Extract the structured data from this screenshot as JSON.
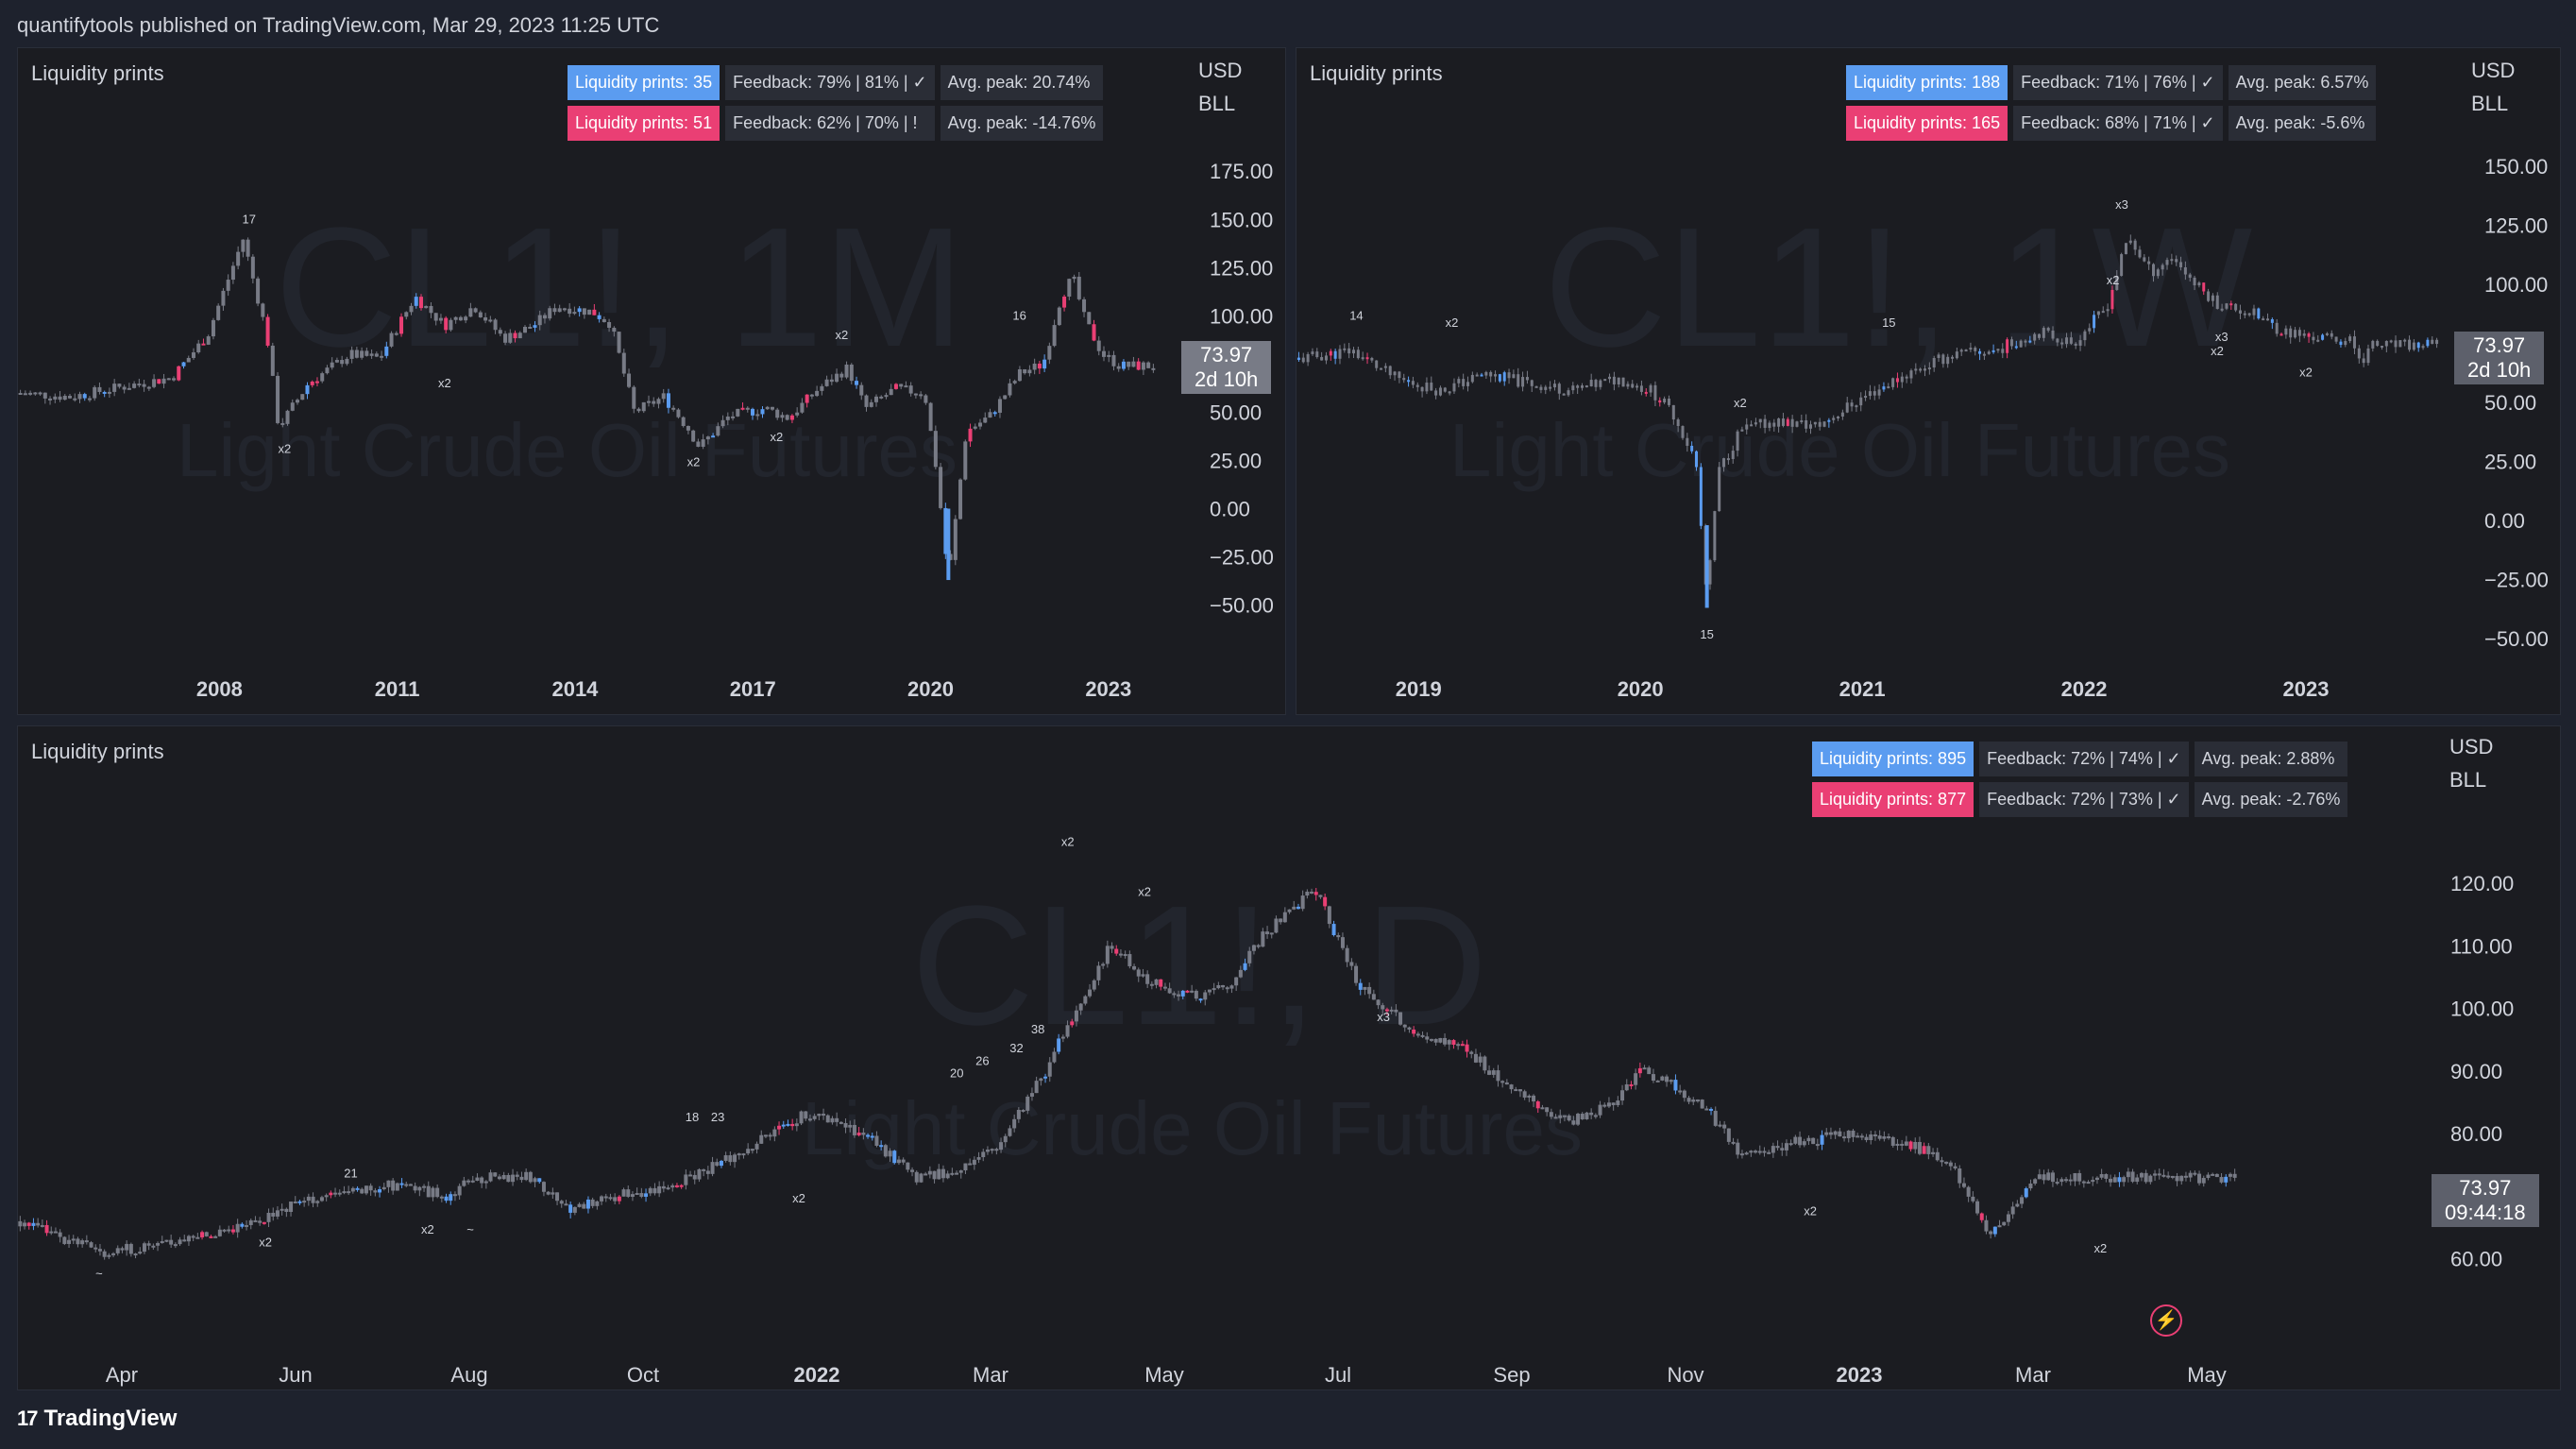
{
  "header": {
    "published_text": "quantifytools published on TradingView.com, Mar 29, 2023 11:25 UTC"
  },
  "footer": {
    "logo_glyph": "17",
    "brand": "TradingView"
  },
  "colors": {
    "bull": "#5b9cf0",
    "bear": "#ea3f74",
    "candle": "#787b86",
    "bg": "#1b1c21"
  },
  "panels": [
    {
      "id": "a",
      "title": "Liquidity prints",
      "watermark_symbol": "CL1!, 1M",
      "watermark_name": "Light Crude Oil Futures",
      "currency": "USD",
      "unit": "BLL",
      "price": "73.97",
      "countdown": "2d 10h",
      "stats": [
        [
          "Liquidity prints: 35",
          "Feedback: 79% | 81% | ✓",
          "Avg. peak: 20.74%"
        ],
        [
          "Liquidity prints: 51",
          "Feedback: 62% | 70% | !",
          "Avg. peak: -14.76%"
        ]
      ],
      "chart_data": {
        "type": "candlestick",
        "x_ticks": [
          "2008",
          "2011",
          "2014",
          "2017",
          "2020",
          "2023"
        ],
        "y_ticks": [
          "175.00",
          "150.00",
          "125.00",
          "100.00",
          "75.00",
          "50.00",
          "25.00",
          "0.00",
          "−25.00",
          "−50.00"
        ],
        "ylim": [
          -60,
          180
        ],
        "xlim": [
          2004.6,
          2023.8
        ],
        "anchors": [
          [
            2004.6,
            60
          ],
          [
            2005.5,
            58
          ],
          [
            2006.5,
            64
          ],
          [
            2007.2,
            68
          ],
          [
            2007.8,
            90
          ],
          [
            2008.4,
            140
          ],
          [
            2008.8,
            90
          ],
          [
            2009.0,
            42
          ],
          [
            2009.5,
            65
          ],
          [
            2010.2,
            80
          ],
          [
            2010.7,
            78
          ],
          [
            2011.3,
            110
          ],
          [
            2011.8,
            95
          ],
          [
            2012.3,
            105
          ],
          [
            2012.8,
            88
          ],
          [
            2013.3,
            95
          ],
          [
            2013.7,
            105
          ],
          [
            2014.3,
            102
          ],
          [
            2014.6,
            96
          ],
          [
            2015.0,
            50
          ],
          [
            2015.5,
            58
          ],
          [
            2015.9,
            42
          ],
          [
            2016.1,
            32
          ],
          [
            2016.6,
            48
          ],
          [
            2017.2,
            52
          ],
          [
            2017.6,
            47
          ],
          [
            2018.1,
            62
          ],
          [
            2018.6,
            73
          ],
          [
            2018.9,
            52
          ],
          [
            2019.4,
            62
          ],
          [
            2019.9,
            60
          ],
          [
            2020.1,
            20
          ],
          [
            2020.3,
            -37
          ],
          [
            2020.6,
            40
          ],
          [
            2021.0,
            48
          ],
          [
            2021.5,
            70
          ],
          [
            2021.9,
            75
          ],
          [
            2022.2,
            110
          ],
          [
            2022.4,
            120
          ],
          [
            2022.6,
            98
          ],
          [
            2022.9,
            80
          ],
          [
            2023.2,
            74
          ]
        ],
        "annotations": [
          {
            "x": 2008.5,
            "y": 148,
            "text": "17"
          },
          {
            "x": 2009.1,
            "y": 29,
            "text": "x2"
          },
          {
            "x": 2011.8,
            "y": 63,
            "text": "x2"
          },
          {
            "x": 2016.0,
            "y": 22,
            "text": "x2"
          },
          {
            "x": 2017.4,
            "y": 35,
            "text": "x2"
          },
          {
            "x": 2018.5,
            "y": 88,
            "text": "x2"
          },
          {
            "x": 2021.5,
            "y": 98,
            "text": "16"
          }
        ]
      }
    },
    {
      "id": "b",
      "title": "Liquidity prints",
      "watermark_symbol": "CL1!, 1W",
      "watermark_name": "Light Crude Oil Futures",
      "currency": "USD",
      "unit": "BLL",
      "price": "73.97",
      "countdown": "2d 10h",
      "stats": [
        [
          "Liquidity prints: 188",
          "Feedback: 71% | 76% | ✓",
          "Avg. peak: 6.57%"
        ],
        [
          "Liquidity prints: 165",
          "Feedback: 68% | 71% | ✓",
          "Avg. peak: -5.6%"
        ]
      ],
      "chart_data": {
        "type": "candlestick",
        "x_ticks": [
          "2019",
          "2020",
          "2021",
          "2022",
          "2023"
        ],
        "y_ticks": [
          "150.00",
          "125.00",
          "100.00",
          "75.00",
          "50.00",
          "25.00",
          "0.00",
          "−25.00",
          "−50.00"
        ],
        "ylim": [
          -60,
          160
        ],
        "xlim": [
          2018.45,
          2023.6
        ],
        "anchors": [
          [
            2018.45,
            68
          ],
          [
            2018.7,
            72
          ],
          [
            2018.9,
            60
          ],
          [
            2019.1,
            55
          ],
          [
            2019.3,
            62
          ],
          [
            2019.5,
            58
          ],
          [
            2019.7,
            55
          ],
          [
            2019.9,
            60
          ],
          [
            2020.05,
            55
          ],
          [
            2020.15,
            45
          ],
          [
            2020.25,
            25
          ],
          [
            2020.3,
            -35
          ],
          [
            2020.35,
            20
          ],
          [
            2020.45,
            38
          ],
          [
            2020.6,
            42
          ],
          [
            2020.8,
            40
          ],
          [
            2021.0,
            52
          ],
          [
            2021.2,
            62
          ],
          [
            2021.4,
            70
          ],
          [
            2021.6,
            72
          ],
          [
            2021.8,
            80
          ],
          [
            2021.95,
            75
          ],
          [
            2022.1,
            90
          ],
          [
            2022.2,
            120
          ],
          [
            2022.3,
            105
          ],
          [
            2022.4,
            112
          ],
          [
            2022.5,
            100
          ],
          [
            2022.6,
            92
          ],
          [
            2022.75,
            88
          ],
          [
            2022.9,
            80
          ],
          [
            2023.0,
            78
          ],
          [
            2023.2,
            76
          ],
          [
            2023.25,
            68
          ],
          [
            2023.3,
            74
          ]
        ],
        "annotations": [
          {
            "x": 2018.72,
            "y": 85,
            "text": "14"
          },
          {
            "x": 2019.15,
            "y": 82,
            "text": "x2"
          },
          {
            "x": 2020.3,
            "y": -50,
            "text": "15"
          },
          {
            "x": 2020.45,
            "y": 48,
            "text": "x2"
          },
          {
            "x": 2021.12,
            "y": 82,
            "text": "15"
          },
          {
            "x": 2022.13,
            "y": 100,
            "text": "x2"
          },
          {
            "x": 2022.17,
            "y": 132,
            "text": "x3"
          },
          {
            "x": 2022.6,
            "y": 70,
            "text": "x2"
          },
          {
            "x": 2022.62,
            "y": 76,
            "text": "x3"
          },
          {
            "x": 2023.0,
            "y": 61,
            "text": "x2"
          }
        ]
      }
    },
    {
      "id": "c",
      "title": "Liquidity prints",
      "watermark_symbol": "CL1!, D",
      "watermark_name": "Light Crude Oil Futures",
      "currency": "USD",
      "unit": "BLL",
      "price": "73.97",
      "countdown": "09:44:18",
      "stats": [
        [
          "Liquidity prints: 895",
          "Feedback: 72% | 74% | ✓",
          "Avg. peak: 2.88%"
        ],
        [
          "Liquidity prints: 877",
          "Feedback: 72% | 73% | ✓",
          "Avg. peak: -2.76%"
        ]
      ],
      "chart_data": {
        "type": "candlestick",
        "x_ticks": [
          "Apr",
          "Jun",
          "Aug",
          "Oct",
          "2022",
          "Mar",
          "May",
          "Jul",
          "Sep",
          "Nov",
          "2023",
          "Mar",
          "May"
        ],
        "y_ticks": [
          "120.00",
          "110.00",
          "100.00",
          "90.00",
          "80.00",
          "70.00",
          "60.00"
        ],
        "ylim": [
          53,
          130
        ],
        "xlim": [
          0,
          26
        ],
        "anchors": [
          [
            0,
            66
          ],
          [
            0.4,
            64
          ],
          [
            1,
            61
          ],
          [
            1.6,
            62
          ],
          [
            2.2,
            64
          ],
          [
            2.8,
            66
          ],
          [
            3.3,
            69
          ],
          [
            4,
            71
          ],
          [
            4.5,
            72
          ],
          [
            5,
            70
          ],
          [
            5.4,
            73
          ],
          [
            6,
            73
          ],
          [
            6.5,
            68
          ],
          [
            7,
            70
          ],
          [
            7.5,
            71
          ],
          [
            8.2,
            75
          ],
          [
            8.6,
            78
          ],
          [
            9.2,
            83
          ],
          [
            9.6,
            82
          ],
          [
            10,
            79
          ],
          [
            10.5,
            73
          ],
          [
            11,
            74
          ],
          [
            11.5,
            78
          ],
          [
            12,
            89
          ],
          [
            12.4,
            100
          ],
          [
            12.8,
            110
          ],
          [
            13.3,
            104
          ],
          [
            13.8,
            102
          ],
          [
            14.2,
            104
          ],
          [
            14.6,
            112
          ],
          [
            15.2,
            119
          ],
          [
            15.7,
            104
          ],
          [
            16.3,
            97
          ],
          [
            17,
            93
          ],
          [
            17.6,
            86
          ],
          [
            18.2,
            82
          ],
          [
            18.7,
            85
          ],
          [
            19,
            90
          ],
          [
            19.4,
            88
          ],
          [
            19.9,
            82
          ],
          [
            20.2,
            76
          ],
          [
            20.6,
            78
          ],
          [
            21,
            79
          ],
          [
            21.6,
            80
          ],
          [
            22.2,
            78
          ],
          [
            22.6,
            76
          ],
          [
            23.1,
            64
          ],
          [
            23.5,
            70
          ],
          [
            23.7,
            73
          ]
        ],
        "annotations": [
          {
            "x": 0.95,
            "y": 57,
            "text": "~"
          },
          {
            "x": 2.9,
            "y": 62,
            "text": "x2"
          },
          {
            "x": 3.9,
            "y": 73,
            "text": "21"
          },
          {
            "x": 4.8,
            "y": 64,
            "text": "x2"
          },
          {
            "x": 5.3,
            "y": 64,
            "text": "~"
          },
          {
            "x": 7.9,
            "y": 82,
            "text": "18"
          },
          {
            "x": 8.2,
            "y": 82,
            "text": "23"
          },
          {
            "x": 9.15,
            "y": 69,
            "text": "x2"
          },
          {
            "x": 11.0,
            "y": 89,
            "text": "20"
          },
          {
            "x": 11.3,
            "y": 91,
            "text": "26"
          },
          {
            "x": 11.7,
            "y": 93,
            "text": "32"
          },
          {
            "x": 11.95,
            "y": 96,
            "text": "38"
          },
          {
            "x": 12.3,
            "y": 126,
            "text": "x2"
          },
          {
            "x": 13.2,
            "y": 118,
            "text": "x2"
          },
          {
            "x": 16.0,
            "y": 98,
            "text": "x3"
          },
          {
            "x": 21.0,
            "y": 67,
            "text": "x2"
          },
          {
            "x": 24.4,
            "y": 61,
            "text": "x2"
          }
        ]
      }
    }
  ]
}
